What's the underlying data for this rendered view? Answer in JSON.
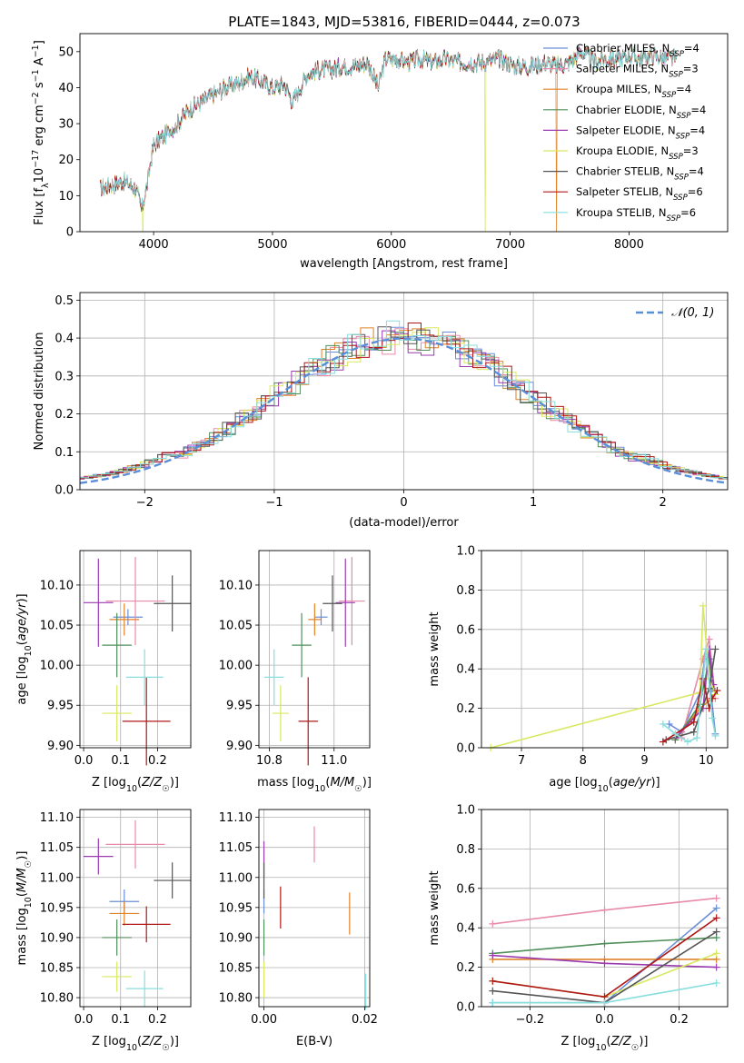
{
  "title": "PLATE=1843, MJD=53816, FIBERID=0444, z=0.073",
  "colors": {
    "series": [
      "#6a8ed8",
      "#e88aa8",
      "#e08228",
      "#4f8f5a",
      "#9a3ab0",
      "#d8e860",
      "#555555",
      "#b01818",
      "#88dddd"
    ],
    "gaussian": "#5a8fd8",
    "grid": "#b0b0b0"
  },
  "chart_data": [
    {
      "id": "spectrum",
      "type": "line",
      "title": "PLATE=1843, MJD=53816, FIBERID=0444, z=0.073",
      "xlabel": "wavelength [Angstrom, rest frame]",
      "ylabel": "Flux [f_λ 10^-17 erg cm^-2 s^-1 A^-1]",
      "xlim": [
        3380,
        8830
      ],
      "ylim": [
        0,
        55
      ],
      "xticks": [
        4000,
        5000,
        6000,
        7000,
        8000
      ],
      "yticks": [
        0,
        10,
        20,
        30,
        40,
        50
      ],
      "grid": false,
      "legend_position": "top-right",
      "spectrum_points": [
        [
          3550,
          12
        ],
        [
          3650,
          13
        ],
        [
          3750,
          14
        ],
        [
          3850,
          12
        ],
        [
          3900,
          6
        ],
        [
          3950,
          14
        ],
        [
          4000,
          24
        ],
        [
          4100,
          27
        ],
        [
          4200,
          30
        ],
        [
          4300,
          34
        ],
        [
          4400,
          36
        ],
        [
          4500,
          38
        ],
        [
          4600,
          40
        ],
        [
          4700,
          41
        ],
        [
          4800,
          43
        ],
        [
          4900,
          42
        ],
        [
          5000,
          40
        ],
        [
          5100,
          41
        ],
        [
          5170,
          36
        ],
        [
          5250,
          41
        ],
        [
          5300,
          44
        ],
        [
          5400,
          45
        ],
        [
          5500,
          45
        ],
        [
          5600,
          46
        ],
        [
          5700,
          46
        ],
        [
          5800,
          47
        ],
        [
          5890,
          40
        ],
        [
          5950,
          48
        ],
        [
          6050,
          48
        ],
        [
          6150,
          47
        ],
        [
          6250,
          48
        ],
        [
          6350,
          47
        ],
        [
          6450,
          48
        ],
        [
          6550,
          47
        ],
        [
          6650,
          47
        ],
        [
          6800,
          47
        ],
        [
          6900,
          48
        ],
        [
          7050,
          46
        ],
        [
          7200,
          46
        ],
        [
          7300,
          47
        ],
        [
          7400,
          46
        ],
        [
          7500,
          47
        ],
        [
          7600,
          50
        ],
        [
          7700,
          47
        ],
        [
          7800,
          48
        ],
        [
          7900,
          48
        ],
        [
          8000,
          49
        ],
        [
          8100,
          48
        ],
        [
          8200,
          49
        ],
        [
          8300,
          48
        ],
        [
          8400,
          48
        ]
      ],
      "series": [
        {
          "name": "Chabrier MILES, N_SSP=4"
        },
        {
          "name": "Salpeter MILES, N_SSP=3"
        },
        {
          "name": "Kroupa MILES, N_SSP=4"
        },
        {
          "name": "Chabrier ELODIE, N_SSP=4"
        },
        {
          "name": "Salpeter ELODIE, N_SSP=4"
        },
        {
          "name": "Kroupa ELODIE, N_SSP=3"
        },
        {
          "name": "Chabrier STELIB, N_SSP=4"
        },
        {
          "name": "Salpeter STELIB, N_SSP=6"
        },
        {
          "name": "Kroupa STELIB, N_SSP=6"
        }
      ],
      "legend_labels": [
        {
          "main": "Chabrier MILES, N",
          "sub": "SSP",
          "tail": "=4"
        },
        {
          "main": "Salpeter MILES, N",
          "sub": "SSP",
          "tail": "=3"
        },
        {
          "main": "Kroupa MILES, N",
          "sub": "SSP",
          "tail": "=4"
        },
        {
          "main": "Chabrier ELODIE, N",
          "sub": "SSP",
          "tail": "=4"
        },
        {
          "main": "Salpeter ELODIE, N",
          "sub": "SSP",
          "tail": "=4"
        },
        {
          "main": "Kroupa ELODIE, N",
          "sub": "SSP",
          "tail": "=3"
        },
        {
          "main": "Chabrier STELIB, N",
          "sub": "SSP",
          "tail": "=4"
        },
        {
          "main": "Salpeter STELIB, N",
          "sub": "SSP",
          "tail": "=6"
        },
        {
          "main": "Kroupa STELIB, N",
          "sub": "SSP",
          "tail": "=6"
        }
      ],
      "edge_dropouts": [
        {
          "series": 5,
          "x": 3910
        },
        {
          "series": 5,
          "x": 6790
        },
        {
          "series": 2,
          "x": 7390
        }
      ]
    },
    {
      "id": "residuals",
      "type": "histogram",
      "xlabel": "(data-model)/error",
      "ylabel": "Normed distribution",
      "xlim": [
        -2.5,
        2.5
      ],
      "ylim": [
        0,
        0.52
      ],
      "xticks": [
        -2,
        -1,
        0,
        1,
        2
      ],
      "yticks": [
        0.0,
        0.1,
        0.2,
        0.3,
        0.4,
        0.5
      ],
      "grid": true,
      "bin_width": 0.1,
      "gaussian_label": "𝒩(0, 1)",
      "legend_position": "top-right"
    },
    {
      "id": "age_vs_Z",
      "type": "errorbar",
      "xlabel": "Z [log10(Z/Z☉)]",
      "ylabel": "age [log10(age/yr)]",
      "xlim": [
        -0.01,
        0.29
      ],
      "ylim": [
        9.897,
        10.143
      ],
      "xticks": [
        0.0,
        0.1,
        0.2
      ],
      "yticks": [
        9.9,
        9.95,
        10.0,
        10.05,
        10.1
      ],
      "grid": true,
      "points": [
        {
          "x": 0.12,
          "xerr": 0.04,
          "y": 10.06,
          "yerr": 0.01
        },
        {
          "x": 0.14,
          "xerr": 0.08,
          "y": 10.08,
          "yerr": 0.055
        },
        {
          "x": 0.11,
          "xerr": 0.04,
          "y": 10.057,
          "yerr": 0.02
        },
        {
          "x": 0.09,
          "xerr": 0.04,
          "y": 10.025,
          "yerr": 0.04
        },
        {
          "x": 0.04,
          "xerr": 0.04,
          "y": 10.078,
          "yerr": 0.055
        },
        {
          "x": 0.09,
          "xerr": 0.04,
          "y": 9.94,
          "yerr": 0.035
        },
        {
          "x": 0.24,
          "xerr": 0.05,
          "y": 10.077,
          "yerr": 0.035
        },
        {
          "x": 0.17,
          "xerr": 0.065,
          "y": 9.93,
          "yerr": 0.055
        },
        {
          "x": 0.165,
          "xerr": 0.05,
          "y": 9.985,
          "yerr": 0.035
        }
      ]
    },
    {
      "id": "age_vs_mass",
      "type": "errorbar",
      "xlabel": "mass [log10(M/M☉)]",
      "ylabel": "",
      "xlim": [
        10.768,
        11.11
      ],
      "ylim": [
        9.897,
        10.143
      ],
      "xticks": [
        10.8,
        11.0
      ],
      "yticks": [
        9.9,
        9.95,
        10.0,
        10.05,
        10.1
      ],
      "grid": true,
      "points": [
        {
          "x": 10.96,
          "xerr": 0.02,
          "y": 10.06,
          "yerr": 0.01
        },
        {
          "x": 11.055,
          "xerr": 0.04,
          "y": 10.08,
          "yerr": 0.055
        },
        {
          "x": 10.94,
          "xerr": 0.02,
          "y": 10.057,
          "yerr": 0.02
        },
        {
          "x": 10.9,
          "xerr": 0.03,
          "y": 10.025,
          "yerr": 0.04
        },
        {
          "x": 11.035,
          "xerr": 0.03,
          "y": 10.078,
          "yerr": 0.055
        },
        {
          "x": 10.835,
          "xerr": 0.025,
          "y": 9.94,
          "yerr": 0.035
        },
        {
          "x": 10.995,
          "xerr": 0.03,
          "y": 10.077,
          "yerr": 0.035
        },
        {
          "x": 10.92,
          "xerr": 0.03,
          "y": 9.93,
          "yerr": 0.055
        },
        {
          "x": 10.815,
          "xerr": 0.03,
          "y": 9.985,
          "yerr": 0.035
        }
      ]
    },
    {
      "id": "weight_vs_age",
      "type": "line",
      "xlabel": "age [log10(age/yr)]",
      "ylabel": "mass weight",
      "xlim": [
        6.35,
        10.35
      ],
      "ylim": [
        0,
        1
      ],
      "xticks": [
        7,
        8,
        9,
        10
      ],
      "yticks": [
        0.0,
        0.2,
        0.4,
        0.6,
        0.8,
        1.0
      ],
      "grid": true,
      "series": [
        [
          [
            9.4,
            0.12
          ],
          [
            9.6,
            0.08
          ],
          [
            9.9,
            0.28
          ],
          [
            10.0,
            0.5
          ],
          [
            10.15,
            0.07
          ]
        ],
        [
          [
            9.6,
            0.05
          ],
          [
            9.95,
            0.45
          ],
          [
            10.05,
            0.55
          ],
          [
            10.15,
            0.25
          ]
        ],
        [
          [
            9.5,
            0.04
          ],
          [
            9.9,
            0.2
          ],
          [
            10.1,
            0.25
          ]
        ],
        [
          [
            9.5,
            0.04
          ],
          [
            9.9,
            0.22
          ],
          [
            10.05,
            0.45
          ],
          [
            10.1,
            0.3
          ]
        ],
        [
          [
            9.5,
            0.05
          ],
          [
            9.95,
            0.2
          ],
          [
            10.05,
            0.5
          ],
          [
            10.12,
            0.32
          ]
        ],
        [
          [
            6.5,
            0.0
          ],
          [
            9.9,
            0.28
          ],
          [
            9.95,
            0.72
          ],
          [
            10.05,
            0.35
          ],
          [
            10.15,
            0.27
          ]
        ],
        [
          [
            9.35,
            0.04
          ],
          [
            9.8,
            0.08
          ],
          [
            10.05,
            0.3
          ],
          [
            10.15,
            0.5
          ]
        ],
        [
          [
            9.3,
            0.03
          ],
          [
            9.8,
            0.13
          ],
          [
            9.95,
            0.35
          ],
          [
            10.05,
            0.2
          ],
          [
            10.1,
            0.25
          ],
          [
            10.18,
            0.29
          ]
        ],
        [
          [
            9.3,
            0.12
          ],
          [
            9.5,
            0.07
          ],
          [
            9.7,
            0.03
          ],
          [
            9.85,
            0.05
          ],
          [
            10.0,
            0.5
          ],
          [
            10.1,
            0.15
          ],
          [
            10.15,
            0.06
          ]
        ]
      ]
    },
    {
      "id": "mass_vs_Z",
      "type": "errorbar",
      "xlabel": "Z [log10(Z/Z☉)]",
      "ylabel": "mass [log10(M/M☉)]",
      "xlim": [
        -0.01,
        0.29
      ],
      "ylim": [
        10.785,
        11.113
      ],
      "xticks": [
        0.0,
        0.1,
        0.2
      ],
      "yticks": [
        10.8,
        10.85,
        10.9,
        10.95,
        11.0,
        11.05,
        11.1
      ],
      "grid": true,
      "points": [
        {
          "x": 0.11,
          "xerr": 0.04,
          "y": 10.96,
          "yerr": 0.02
        },
        {
          "x": 0.14,
          "xerr": 0.08,
          "y": 11.055,
          "yerr": 0.04
        },
        {
          "x": 0.11,
          "xerr": 0.04,
          "y": 10.94,
          "yerr": 0.02
        },
        {
          "x": 0.09,
          "xerr": 0.04,
          "y": 10.9,
          "yerr": 0.03
        },
        {
          "x": 0.04,
          "xerr": 0.04,
          "y": 11.035,
          "yerr": 0.03
        },
        {
          "x": 0.09,
          "xerr": 0.04,
          "y": 10.835,
          "yerr": 0.025
        },
        {
          "x": 0.24,
          "xerr": 0.05,
          "y": 10.995,
          "yerr": 0.03
        },
        {
          "x": 0.17,
          "xerr": 0.065,
          "y": 10.922,
          "yerr": 0.03
        },
        {
          "x": 0.165,
          "xerr": 0.05,
          "y": 10.815,
          "yerr": 0.03
        }
      ]
    },
    {
      "id": "mass_vs_ebv",
      "type": "errorbar",
      "xlabel": "E(B-V)",
      "ylabel": "",
      "xlim": [
        -0.001,
        0.021
      ],
      "ylim": [
        10.785,
        11.113
      ],
      "xticks": [
        0.0,
        0.02
      ],
      "yticks": [
        10.8,
        10.85,
        10.9,
        10.95,
        11.0,
        11.05,
        11.1
      ],
      "grid": true,
      "points": [
        {
          "x": 0.0,
          "xerr": 0,
          "y": 10.96,
          "yerr": 0.02
        },
        {
          "x": 0.01,
          "xerr": 0,
          "y": 11.055,
          "yerr": 0.03
        },
        {
          "x": 0.017,
          "xerr": 0,
          "y": 10.94,
          "yerr": 0.035
        },
        {
          "x": 0.0,
          "xerr": 0,
          "y": 10.9,
          "yerr": 0.03
        },
        {
          "x": 0.0,
          "xerr": 0,
          "y": 11.03,
          "yerr": 0.03
        },
        {
          "x": 0.0,
          "xerr": 0,
          "y": 10.83,
          "yerr": 0.03
        },
        {
          "x": 0.0,
          "xerr": 0,
          "y": 10.995,
          "yerr": 0.03
        },
        {
          "x": 0.0033,
          "xerr": 0,
          "y": 10.95,
          "yerr": 0.035
        },
        {
          "x": 0.0202,
          "xerr": 0,
          "y": 10.81,
          "yerr": 0.03
        }
      ]
    },
    {
      "id": "weight_vs_Z",
      "type": "line",
      "xlabel": "Z [log10(Z/Z☉)]",
      "ylabel": "mass weight",
      "xlim": [
        -0.33,
        0.33
      ],
      "ylim": [
        0,
        1
      ],
      "xticks": [
        -0.2,
        0.0,
        0.2
      ],
      "yticks": [
        0.0,
        0.2,
        0.4,
        0.6,
        0.8,
        1.0
      ],
      "grid": true,
      "series": [
        [
          [
            -0.3,
            0.02
          ],
          [
            0.0,
            0.02
          ],
          [
            0.3,
            0.5
          ]
        ],
        [
          [
            -0.3,
            0.42
          ],
          [
            0.0,
            0.49
          ],
          [
            0.3,
            0.55
          ]
        ],
        [
          [
            -0.3,
            0.24
          ],
          [
            0.0,
            0.24
          ],
          [
            0.3,
            0.24
          ]
        ],
        [
          [
            -0.3,
            0.27
          ],
          [
            0.0,
            0.32
          ],
          [
            0.3,
            0.35
          ]
        ],
        [
          [
            -0.3,
            0.26
          ],
          [
            0.0,
            0.22
          ],
          [
            0.3,
            0.2
          ]
        ],
        [
          [
            -0.3,
            0.13
          ],
          [
            0.0,
            0.05
          ],
          [
            0.3,
            0.27
          ]
        ],
        [
          [
            -0.3,
            0.08
          ],
          [
            0.0,
            0.02
          ],
          [
            0.3,
            0.38
          ]
        ],
        [
          [
            -0.3,
            0.13
          ],
          [
            0.0,
            0.05
          ],
          [
            0.3,
            0.45
          ]
        ],
        [
          [
            -0.3,
            0.02
          ],
          [
            0.0,
            0.02
          ],
          [
            0.3,
            0.12
          ]
        ]
      ]
    }
  ]
}
